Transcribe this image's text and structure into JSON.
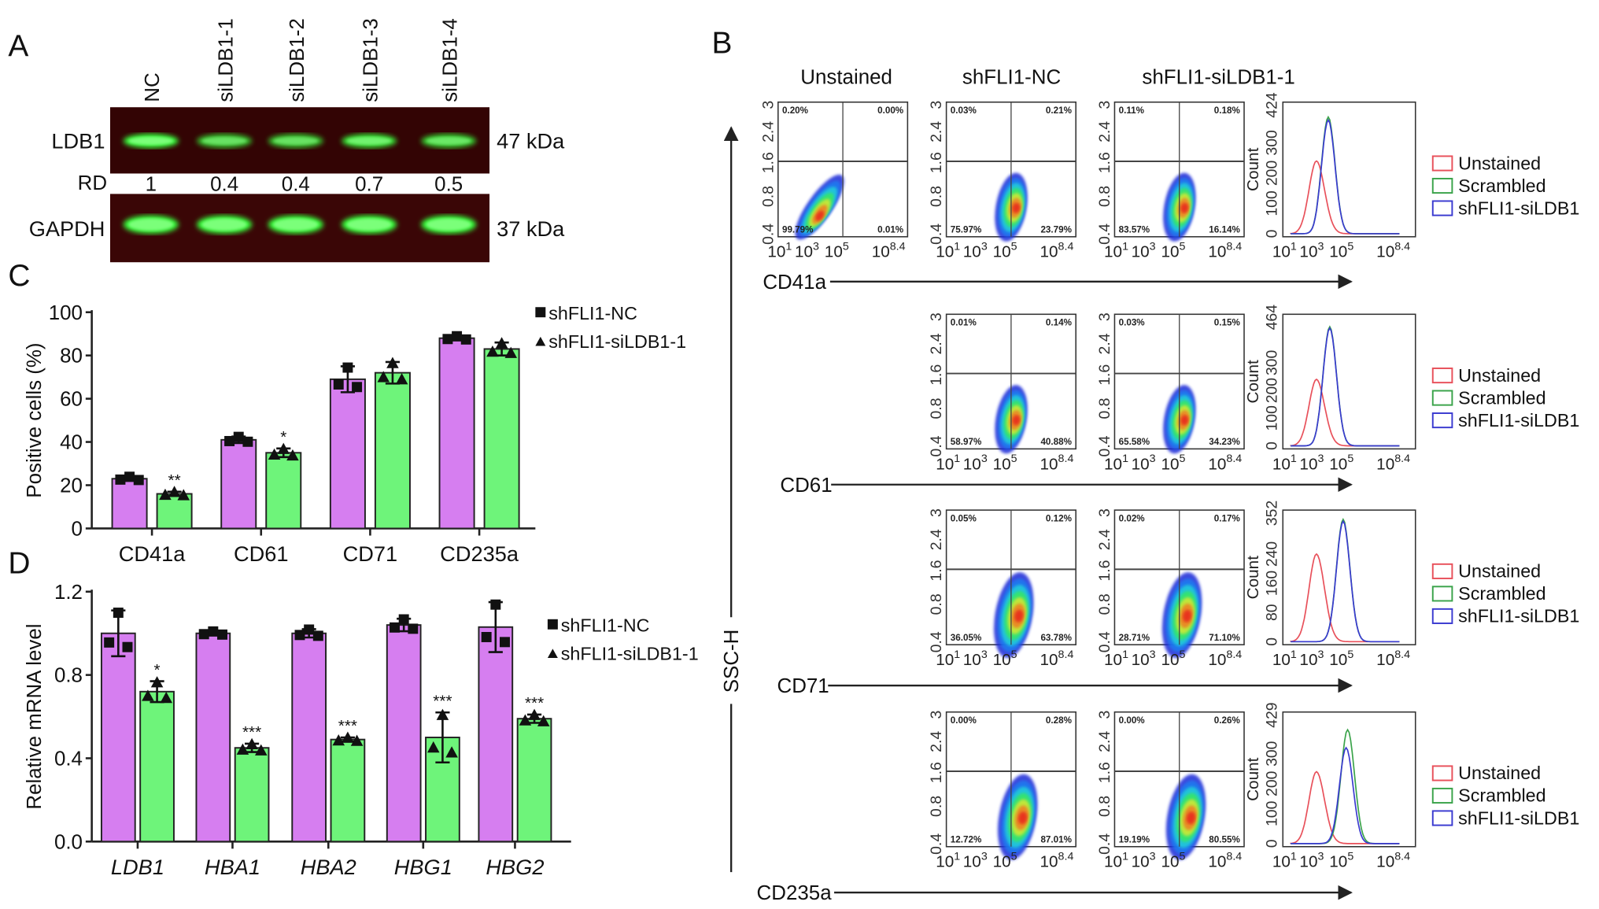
{
  "panel_labels": {
    "A": "A",
    "B": "B",
    "C": "C",
    "D": "D"
  },
  "colors": {
    "nc": "#d67ef0",
    "si": "#6ef47a",
    "unstained": "#e8505a",
    "scrambled": "#3aa34a",
    "siLDB1": "#3a3ad0"
  },
  "chart_data": [
    {
      "type": "western_blot",
      "panel": "A",
      "lanes": [
        "NC",
        "siLDB1-1",
        "siLDB1-2",
        "siLDB1-3",
        "siLDB1-4"
      ],
      "rows": [
        {
          "label": "LDB1",
          "size": "47 kDa"
        },
        {
          "label": "GAPDH",
          "size": "37 kDa"
        }
      ],
      "rd_label": "RD",
      "rd_values": [
        "1",
        "0.4",
        "0.4",
        "0.7",
        "0.5"
      ]
    },
    {
      "type": "bar",
      "panel": "C",
      "categories": [
        "CD41a",
        "CD61",
        "CD71",
        "CD235a"
      ],
      "series": [
        {
          "name": "shFLI1-NC",
          "marker": "square",
          "values": [
            23,
            41,
            69,
            88
          ],
          "errors": [
            1,
            1.5,
            6,
            1
          ]
        },
        {
          "name": "shFLI1-siLDB1-1",
          "marker": "triangle",
          "values": [
            16,
            35,
            72,
            83
          ],
          "errors": [
            1,
            2,
            5,
            3
          ]
        }
      ],
      "significance": [
        "**",
        "*",
        "",
        ""
      ],
      "ylabel": "Positive cells (%)",
      "ylim": [
        0,
        100
      ],
      "yticks": [
        "0",
        "20",
        "40",
        "60",
        "80",
        "100"
      ],
      "legend": "top-right"
    },
    {
      "type": "bar",
      "panel": "D",
      "categories": [
        "LDB1",
        "HBA1",
        "HBA2",
        "HBG1",
        "HBG2"
      ],
      "series": [
        {
          "name": "shFLI1-NC",
          "marker": "square",
          "values": [
            1.0,
            1.0,
            1.0,
            1.04,
            1.03
          ],
          "errors": [
            0.11,
            0.01,
            0.02,
            0.03,
            0.12
          ]
        },
        {
          "name": "shFLI1-siLDB1-1",
          "marker": "triangle",
          "values": [
            0.72,
            0.45,
            0.49,
            0.5,
            0.59
          ],
          "errors": [
            0.05,
            0.02,
            0.01,
            0.12,
            0.02
          ]
        }
      ],
      "significance": [
        "*",
        "***",
        "***",
        "***",
        "***"
      ],
      "ylabel": "Relative mRNA level",
      "ylim": [
        0,
        1.2
      ],
      "yticks": [
        "0.0",
        "0.4",
        "0.8",
        "1.2"
      ],
      "legend": "top-right"
    },
    {
      "type": "flow_cytometry",
      "panel": "B",
      "column_titles": [
        "Unstained",
        "shFLI1-NC",
        "shFLI1-siLDB1-1"
      ],
      "y_axis_label": "SSC-H",
      "y_ticks": [
        "0.4",
        "0.8",
        "1.6",
        "2.4",
        "3"
      ],
      "x_tick_base": "10",
      "x_tick_exponents": [
        "1",
        "3",
        "5",
        "8.4"
      ],
      "hist_ylabel": "Count",
      "legend": [
        "Unstained",
        "Scrambled",
        "shFLI1-siLDB1"
      ],
      "rows": [
        {
          "marker": "CD41a",
          "plots": [
            [
              "0.20%",
              "0.00%",
              "99.79%",
              "0.01%"
            ],
            [
              "0.03%",
              "0.21%",
              "75.97%",
              "23.79%"
            ],
            [
              "0.11%",
              "0.18%",
              "83.57%",
              "16.14%"
            ]
          ],
          "hist_yticks": [
            "0",
            "100",
            "200",
            "300",
            "424"
          ],
          "hist_ymax": 424,
          "peaks": {
            "unstained": {
              "log_x": 2.9,
              "count": 240
            },
            "scrambled": {
              "log_x": 3.7,
              "count": 385
            },
            "siLDB1": {
              "log_x": 3.7,
              "count": 375
            }
          }
        },
        {
          "marker": "CD61",
          "plots": [
            null,
            [
              "0.01%",
              "0.14%",
              "58.97%",
              "40.88%"
            ],
            [
              "0.03%",
              "0.15%",
              "65.58%",
              "34.23%"
            ]
          ],
          "hist_yticks": [
            "0",
            "100",
            "200",
            "300",
            "464"
          ],
          "hist_ymax": 464,
          "peaks": {
            "unstained": {
              "log_x": 2.9,
              "count": 240
            },
            "scrambled": {
              "log_x": 3.8,
              "count": 430
            },
            "siLDB1": {
              "log_x": 3.8,
              "count": 425
            }
          }
        },
        {
          "marker": "CD71",
          "plots": [
            null,
            [
              "0.05%",
              "0.12%",
              "36.05%",
              "63.78%"
            ],
            [
              "0.02%",
              "0.17%",
              "28.71%",
              "71.10%"
            ]
          ],
          "hist_yticks": [
            "0",
            "80",
            "160",
            "240",
            "352"
          ],
          "hist_ymax": 352,
          "peaks": {
            "unstained": {
              "log_x": 2.9,
              "count": 240
            },
            "scrambled": {
              "log_x": 4.7,
              "count": 335
            },
            "siLDB1": {
              "log_x": 4.7,
              "count": 330
            }
          }
        },
        {
          "marker": "CD235a",
          "plots": [
            null,
            [
              "0.00%",
              "0.28%",
              "12.72%",
              "87.01%"
            ],
            [
              "0.00%",
              "0.26%",
              "19.19%",
              "80.55%"
            ]
          ],
          "hist_yticks": [
            "0",
            "100",
            "200",
            "300",
            "429"
          ],
          "hist_ymax": 429,
          "peaks": {
            "unstained": {
              "log_x": 2.9,
              "count": 240
            },
            "scrambled": {
              "log_x": 5.0,
              "count": 380
            },
            "siLDB1": {
              "log_x": 4.9,
              "count": 320
            }
          }
        }
      ]
    }
  ]
}
